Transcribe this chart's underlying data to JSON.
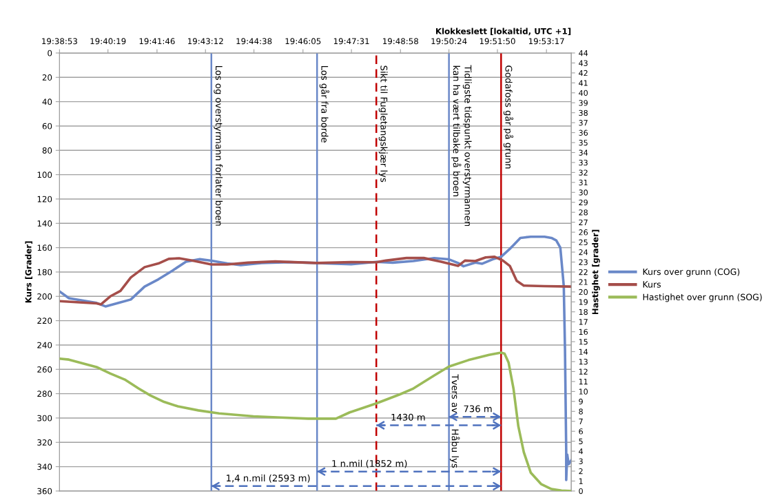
{
  "chart_data": {
    "type": "line",
    "xlabel": "Klokkeslett [lokaltid, UTC +1]",
    "ylabel": "Kurs [Grader]",
    "y2label": "Hastighet [grader]",
    "xlim": [
      19.64806,
      19.90028
    ],
    "xticks": [
      {
        "value": 19.64806,
        "label": "19:38:53"
      },
      {
        "value": 19.67194,
        "label": "19:40:19"
      },
      {
        "value": 19.69611,
        "label": "19:41:46"
      },
      {
        "value": 19.72,
        "label": "19:43:12"
      },
      {
        "value": 19.74389,
        "label": "19:44:38"
      },
      {
        "value": 19.76806,
        "label": "19:46:05"
      },
      {
        "value": 19.79194,
        "label": "19:47:31"
      },
      {
        "value": 19.81611,
        "label": "19:48:58"
      },
      {
        "value": 19.84,
        "label": "19:50:24"
      },
      {
        "value": 19.86389,
        "label": "19:51:50"
      },
      {
        "value": 19.88806,
        "label": "19:53:17"
      }
    ],
    "ylim": [
      360,
      0
    ],
    "yticks": [
      0,
      20,
      40,
      60,
      80,
      100,
      120,
      140,
      160,
      180,
      200,
      220,
      240,
      260,
      280,
      300,
      320,
      340,
      360
    ],
    "y2lim": [
      0,
      44
    ],
    "y2ticks": [
      0,
      1,
      2,
      3,
      4,
      5,
      6,
      7,
      8,
      9,
      10,
      11,
      12,
      13,
      14,
      15,
      16,
      17,
      18,
      19,
      20,
      21,
      22,
      23,
      24,
      25,
      26,
      27,
      28,
      29,
      30,
      31,
      32,
      33,
      34,
      35,
      36,
      37,
      38,
      39,
      40,
      41,
      42,
      43,
      44
    ],
    "grid": "y",
    "legend": "right",
    "marker": "none",
    "line_style": "solid",
    "series": [
      {
        "name": "Kurs over grunn (COG)",
        "color": "#6a88c8",
        "x": [
          19.6481,
          19.6527,
          19.6663,
          19.6707,
          19.6781,
          19.6832,
          19.69,
          19.6968,
          19.7036,
          19.7104,
          19.7172,
          19.7229,
          19.7307,
          19.7374,
          19.7476,
          19.7612,
          19.7748,
          19.7918,
          19.8042,
          19.8123,
          19.8225,
          19.8327,
          19.84,
          19.8445,
          19.8472,
          19.853,
          19.8564,
          19.8615,
          19.8657,
          19.87,
          19.8718,
          19.8752,
          19.8803,
          19.8871,
          19.8905,
          19.8929,
          19.8949,
          19.8966,
          19.8972,
          19.8978,
          19.8978,
          19.8983,
          19.899,
          19.9002
        ],
        "values": [
          196,
          201.5,
          205.4,
          208.3,
          205,
          202.6,
          192,
          186,
          179,
          171.5,
          169.5,
          170.7,
          173,
          174.3,
          172.6,
          171.9,
          172.6,
          173.7,
          171.7,
          172.3,
          171,
          168.6,
          169.6,
          172.6,
          175.3,
          172.3,
          173.2,
          169.6,
          167.5,
          161,
          158,
          152,
          151,
          151,
          152,
          154,
          160,
          191.6,
          244,
          327.7,
          351,
          330,
          338,
          335
        ]
      },
      {
        "name": "Kurs",
        "color": "#a54e4a",
        "x": [
          19.6481,
          19.6663,
          19.6685,
          19.6731,
          19.6781,
          19.6832,
          19.69,
          19.6968,
          19.7019,
          19.707,
          19.7138,
          19.7229,
          19.7307,
          19.7409,
          19.7544,
          19.7748,
          19.7918,
          19.8042,
          19.8089,
          19.8191,
          19.8276,
          19.8361,
          19.8445,
          19.8479,
          19.853,
          19.8581,
          19.8625,
          19.8666,
          19.87,
          19.8734,
          19.8769,
          19.8871,
          19.9002
        ],
        "values": [
          204,
          205.8,
          206.6,
          200,
          195.5,
          184.5,
          176,
          173,
          169.2,
          168.7,
          170.7,
          173.8,
          173.8,
          172.3,
          171.3,
          172.6,
          171.9,
          172,
          170.6,
          168.5,
          168.5,
          171.5,
          175,
          170.6,
          171,
          168,
          167.5,
          170.6,
          175,
          187.3,
          191.2,
          191.6,
          192
        ]
      },
      {
        "name": "Hastighet over grunn (SOG)",
        "color": "#9bbb59",
        "axis": "y2",
        "x": [
          19.6481,
          19.6527,
          19.6663,
          19.6731,
          19.6802,
          19.687,
          19.6928,
          19.6996,
          19.7064,
          19.7165,
          19.7267,
          19.7436,
          19.7572,
          19.7707,
          19.7843,
          19.7911,
          19.8042,
          19.8157,
          19.8225,
          19.8327,
          19.84,
          19.8496,
          19.8598,
          19.8657,
          19.8674,
          19.8694,
          19.8718,
          19.8742,
          19.8769,
          19.8803,
          19.8854,
          19.8905,
          19.8955,
          19.9002
        ],
        "values": [
          13.3,
          13.2,
          12.45,
          11.8,
          11.2,
          10.3,
          9.6,
          8.95,
          8.5,
          8.1,
          7.8,
          7.5,
          7.38,
          7.27,
          7.27,
          7.9,
          8.8,
          9.7,
          10.3,
          11.6,
          12.5,
          13.15,
          13.67,
          13.9,
          13.8,
          12.9,
          10.3,
          6.5,
          3.9,
          1.85,
          0.7,
          0.2,
          0.05,
          0
        ]
      },
      {
        "type": "line",
        "color": "#4f72be",
        "line_style": "dashed",
        "x": [
          19.7229,
          19.8657
        ],
        "values": [
          356,
          356
        ]
      },
      {
        "type": "line",
        "color": "#4f72be",
        "line_style": "dashed",
        "x": [
          19.775,
          19.8657
        ],
        "values": [
          344,
          344
        ]
      },
      {
        "type": "line",
        "color": "#4f72be",
        "line_style": "dashed",
        "x": [
          19.8042,
          19.8657
        ],
        "values": [
          306,
          306
        ]
      },
      {
        "type": "line",
        "color": "#4f72be",
        "line_style": "dashed",
        "x": [
          19.84,
          19.8657
        ],
        "values": [
          299,
          299
        ]
      }
    ],
    "ref_lines": [
      {
        "axis": "x",
        "value": 19.7229,
        "label": "Los og overstyrmann forlater broen",
        "color": "#6a88c8",
        "line_style": "solid"
      },
      {
        "axis": "x",
        "value": 19.775,
        "label": "Los går fra borde",
        "color": "#6a88c8",
        "line_style": "solid"
      },
      {
        "axis": "x",
        "value": 19.8042,
        "label": "Sikt til Fugletangskjær lys",
        "color": "#c00000",
        "line_style": "dashed"
      },
      {
        "axis": "x",
        "value": 19.84,
        "label": "Tidligste tidspunkt overstyrmannen\nkan ha vært tilbake på broen",
        "color": "#6a88c8",
        "line_style": "solid"
      },
      {
        "axis": "x",
        "value": 19.8657,
        "label": "Godafoss går på grunn",
        "color": "#c00000",
        "line_style": "solid"
      }
    ],
    "annotations": [
      {
        "text": "Tvers av",
        "x": 19.84,
        "y": 280
      },
      {
        "text": "Håbu lys",
        "x": 19.84,
        "y": 325
      },
      "1,4 n.mil (2593 m)",
      "1 n.mil (1852 m)",
      "1430 m",
      "736 m"
    ]
  }
}
